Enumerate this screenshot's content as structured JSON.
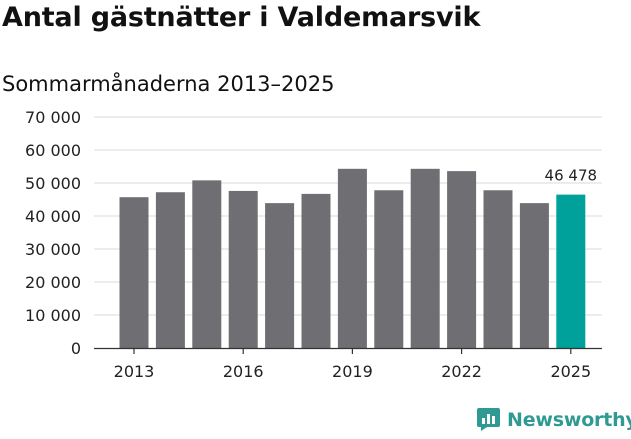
{
  "header": {
    "title": "Antal gästnätter i Valdemarsvik",
    "subtitle": "Sommarmånaderna 2013–2025"
  },
  "brand": {
    "name": "Newsworthy",
    "color": "#2f9a93"
  },
  "colors": {
    "bar": "#6f6e72",
    "highlight": "#00a19a",
    "grid": "#d9d9d9",
    "axis": "#333333"
  },
  "chart_data": {
    "type": "bar",
    "title": "",
    "xlabel": "",
    "ylabel": "",
    "categories": [
      "2013",
      "2014",
      "2015",
      "2016",
      "2017",
      "2018",
      "2019",
      "2020",
      "2021",
      "2022",
      "2023",
      "2024",
      "2025"
    ],
    "values": [
      45700,
      47200,
      50800,
      47600,
      43900,
      46700,
      54300,
      47800,
      54300,
      53600,
      47800,
      43900,
      46478
    ],
    "ylim": [
      0,
      70000
    ],
    "yticks": [
      0,
      10000,
      20000,
      30000,
      40000,
      50000,
      60000,
      70000
    ],
    "ytick_labels": [
      "0",
      "10 000",
      "20 000",
      "30 000",
      "40 000",
      "50 000",
      "60 000",
      "70 000"
    ],
    "xtick_labels": [
      "2013",
      "2016",
      "2019",
      "2022",
      "2025"
    ],
    "highlight_category": "2025",
    "data_labels": [
      {
        "category": "2025",
        "text": "46 478"
      }
    ],
    "grid": true,
    "legend": "none"
  }
}
